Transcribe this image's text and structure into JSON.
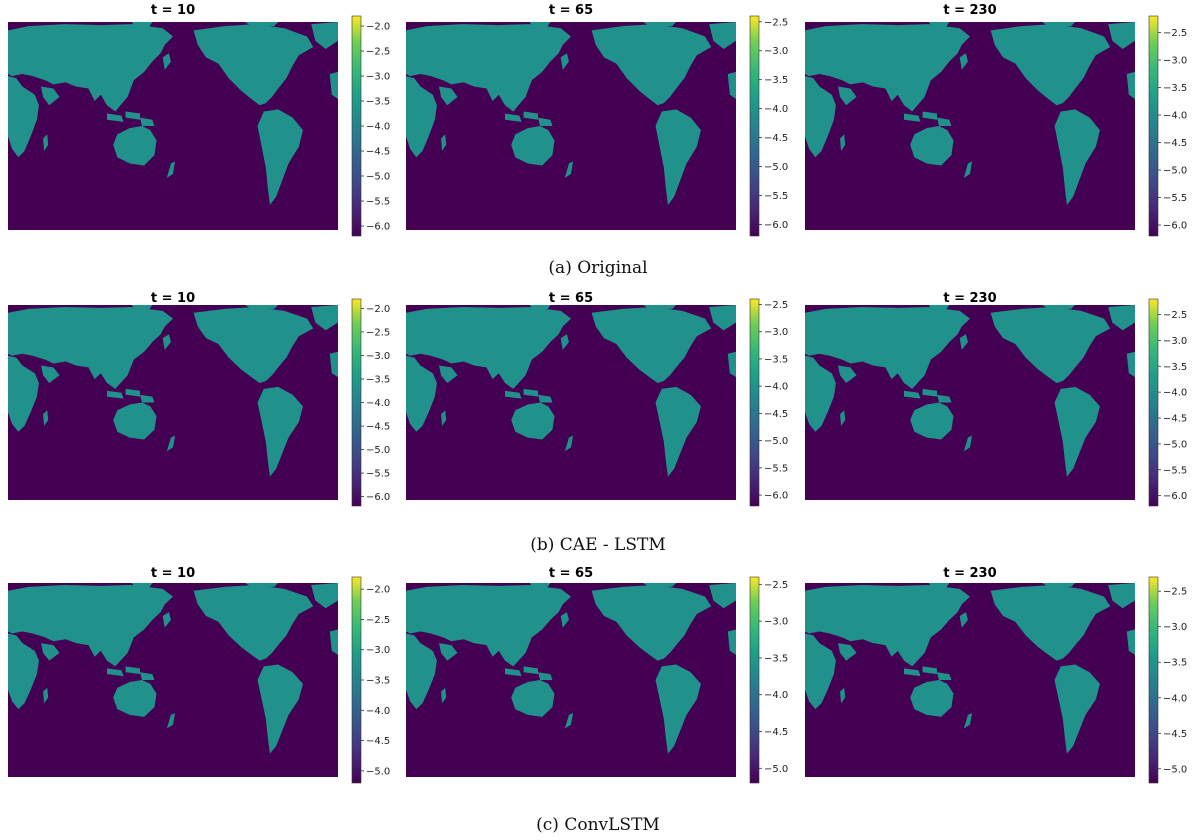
{
  "figure": {
    "captions": [
      "(a) Original",
      "(b) CAE - LSTM",
      "(c) ConvLSTM"
    ]
  },
  "colors": {
    "ocean": "#440154",
    "land_low": "#31688e",
    "land_mid": "#21918c",
    "hot_mid": "#5ec962",
    "hot_high": "#fde725",
    "colormap": "viridis"
  },
  "chart_data": [
    {
      "type": "heatmap",
      "row": "(a) Original",
      "title": "t =  10",
      "colorbar": {
        "min": -6.2,
        "max": -1.8,
        "ticks": [
          "-2.0",
          "-2.5",
          "-3.0",
          "-3.5",
          "-4.0",
          "-4.5",
          "-5.0",
          "-5.5",
          "-6.0"
        ]
      }
    },
    {
      "type": "heatmap",
      "row": "(a) Original",
      "title": "t =  65",
      "colorbar": {
        "min": -6.2,
        "max": -2.4,
        "ticks": [
          "-2.5",
          "-3.0",
          "-3.5",
          "-4.0",
          "-4.5",
          "-5.0",
          "-5.5",
          "-6.0"
        ]
      }
    },
    {
      "type": "heatmap",
      "row": "(a) Original",
      "title": "t =  230",
      "colorbar": {
        "min": -6.2,
        "max": -2.2,
        "ticks": [
          "-2.5",
          "-3.0",
          "-3.5",
          "-4.0",
          "-4.5",
          "-5.0",
          "-5.5",
          "-6.0"
        ]
      }
    },
    {
      "type": "heatmap",
      "row": "(b) CAE - LSTM",
      "title": "t =  10",
      "colorbar": {
        "min": -6.2,
        "max": -1.8,
        "ticks": [
          "-2.0",
          "-2.5",
          "-3.0",
          "-3.5",
          "-4.0",
          "-4.5",
          "-5.0",
          "-5.5",
          "-6.0"
        ]
      }
    },
    {
      "type": "heatmap",
      "row": "(b) CAE - LSTM",
      "title": "t =  65",
      "colorbar": {
        "min": -6.2,
        "max": -2.4,
        "ticks": [
          "-2.5",
          "-3.0",
          "-3.5",
          "-4.0",
          "-4.5",
          "-5.0",
          "-5.5",
          "-6.0"
        ]
      }
    },
    {
      "type": "heatmap",
      "row": "(b) CAE - LSTM",
      "title": "t =  230",
      "colorbar": {
        "min": -6.2,
        "max": -2.2,
        "ticks": [
          "-2.5",
          "-3.0",
          "-3.5",
          "-4.0",
          "-4.5",
          "-5.0",
          "-5.5",
          "-6.0"
        ]
      }
    },
    {
      "type": "heatmap",
      "row": "(c) ConvLSTM",
      "title": "t =  10",
      "colorbar": {
        "min": -5.2,
        "max": -1.8,
        "ticks": [
          "-2.0",
          "-2.5",
          "-3.0",
          "-3.5",
          "-4.0",
          "-4.5",
          "-5.0"
        ]
      }
    },
    {
      "type": "heatmap",
      "row": "(c) ConvLSTM",
      "title": "t =  65",
      "colorbar": {
        "min": -5.2,
        "max": -2.4,
        "ticks": [
          "-2.5",
          "-3.0",
          "-3.5",
          "-4.0",
          "-4.5",
          "-5.0"
        ]
      }
    },
    {
      "type": "heatmap",
      "row": "(c) ConvLSTM",
      "title": "t =  230",
      "colorbar": {
        "min": -5.2,
        "max": -2.3,
        "ticks": [
          "-2.5",
          "-3.0",
          "-3.5",
          "-4.0",
          "-4.5",
          "-5.0"
        ]
      }
    }
  ]
}
